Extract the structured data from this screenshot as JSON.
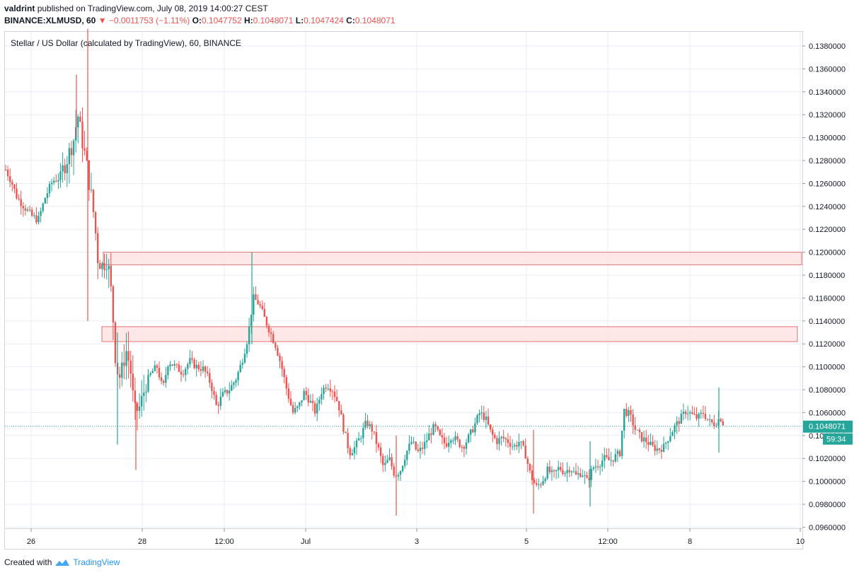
{
  "header": {
    "user": "valdrint",
    "published_text": "published on TradingView.com, July 08, 2019 14:00:27 CEST",
    "symbol": "BINANCE:XLMUSD, 60",
    "change": "▼ −0.0011753 (−1.11%)",
    "o_label": "O:",
    "o_value": "0.1047752",
    "h_label": "H:",
    "h_value": "0.1048071",
    "l_label": "L:",
    "l_value": "0.1047424",
    "c_label": "C:",
    "c_value": "0.1048071"
  },
  "footer": {
    "created_with": "Created with",
    "brand": "TradingView"
  },
  "colors": {
    "up": "#26a69a",
    "down": "#ef5350",
    "zone_fill": "#fde3e3",
    "zone_stroke": "#e57373",
    "price_line": "#26a69a",
    "grid": "#e9eef3",
    "axis": "#9598a1"
  },
  "chart_data": {
    "type": "candlestick",
    "title": "Stellar / US Dollar (calculated by TradingView), 60, BINANCE",
    "ylim": [
      0.0945,
      0.1395
    ],
    "y_ticks": [
      "0.1380000",
      "0.1360000",
      "0.1340000",
      "0.1320000",
      "0.1300000",
      "0.1280000",
      "0.1260000",
      "0.1240000",
      "0.1220000",
      "0.1200000",
      "0.1180000",
      "0.1160000",
      "0.1140000",
      "0.1120000",
      "0.1100000",
      "0.1080000",
      "0.1060000",
      "0.1040000",
      "0.1020000",
      "0.1000000",
      "0.0980000",
      "0.0960000"
    ],
    "x_ticks": [
      "26",
      "28",
      "12:00",
      "Jul",
      "3",
      "5",
      "12:00",
      "8",
      "10"
    ],
    "last_price": "0.1048071",
    "countdown": "59:34",
    "last_price_value": 0.1048071,
    "resistance_zones": [
      {
        "label": "zone-upper",
        "low": 0.1189,
        "high": 0.12
      },
      {
        "label": "zone-lower",
        "low": 0.1122,
        "high": 0.1135
      }
    ],
    "price_path": [
      [
        0,
        0.1272
      ],
      [
        8,
        0.1262
      ],
      [
        16,
        0.1248
      ],
      [
        26,
        0.124
      ],
      [
        36,
        0.1232
      ],
      [
        46,
        0.1228
      ],
      [
        56,
        0.1248
      ],
      [
        66,
        0.1262
      ],
      [
        76,
        0.1265
      ],
      [
        86,
        0.128
      ],
      [
        96,
        0.1298
      ],
      [
        102,
        0.132
      ],
      [
        108,
        0.1298
      ],
      [
        114,
        0.1278
      ],
      [
        118,
        0.126
      ],
      [
        122,
        0.1245
      ],
      [
        126,
        0.1225
      ],
      [
        130,
        0.1195
      ],
      [
        136,
        0.1188
      ],
      [
        144,
        0.1194
      ],
      [
        150,
        0.116
      ],
      [
        156,
        0.11
      ],
      [
        162,
        0.109
      ],
      [
        170,
        0.1115
      ],
      [
        176,
        0.11
      ],
      [
        182,
        0.106
      ],
      [
        190,
        0.1065
      ],
      [
        198,
        0.1085
      ],
      [
        206,
        0.1095
      ],
      [
        214,
        0.11
      ],
      [
        222,
        0.108
      ],
      [
        230,
        0.1105
      ],
      [
        240,
        0.11
      ],
      [
        250,
        0.1095
      ],
      [
        260,
        0.1105
      ],
      [
        270,
        0.11
      ],
      [
        280,
        0.1098
      ],
      [
        290,
        0.1085
      ],
      [
        298,
        0.1065
      ],
      [
        306,
        0.1075
      ],
      [
        316,
        0.108
      ],
      [
        326,
        0.109
      ],
      [
        334,
        0.1105
      ],
      [
        342,
        0.1125
      ],
      [
        350,
        0.116
      ],
      [
        358,
        0.1155
      ],
      [
        366,
        0.1142
      ],
      [
        374,
        0.113
      ],
      [
        382,
        0.1118
      ],
      [
        390,
        0.11
      ],
      [
        398,
        0.1078
      ],
      [
        406,
        0.106
      ],
      [
        414,
        0.1065
      ],
      [
        422,
        0.1078
      ],
      [
        430,
        0.107
      ],
      [
        438,
        0.106
      ],
      [
        446,
        0.1078
      ],
      [
        454,
        0.1085
      ],
      [
        462,
        0.108
      ],
      [
        470,
        0.1068
      ],
      [
        478,
        0.1045
      ],
      [
        486,
        0.1025
      ],
      [
        494,
        0.103
      ],
      [
        502,
        0.104
      ],
      [
        510,
        0.1052
      ],
      [
        518,
        0.1045
      ],
      [
        526,
        0.103
      ],
      [
        534,
        0.1012
      ],
      [
        542,
        0.102
      ],
      [
        550,
        0.1005
      ],
      [
        558,
        0.101
      ],
      [
        566,
        0.1025
      ],
      [
        574,
        0.1035
      ],
      [
        582,
        0.1025
      ],
      [
        590,
        0.103
      ],
      [
        598,
        0.104
      ],
      [
        606,
        0.1048
      ],
      [
        614,
        0.1038
      ],
      [
        622,
        0.1032
      ],
      [
        630,
        0.104
      ],
      [
        638,
        0.1035
      ],
      [
        646,
        0.103
      ],
      [
        654,
        0.1038
      ],
      [
        662,
        0.1048
      ],
      [
        670,
        0.106
      ],
      [
        678,
        0.1055
      ],
      [
        686,
        0.1042
      ],
      [
        694,
        0.1035
      ],
      [
        702,
        0.1038
      ],
      [
        710,
        0.1035
      ],
      [
        718,
        0.103
      ],
      [
        726,
        0.1035
      ],
      [
        734,
        0.1025
      ],
      [
        742,
        0.1005
      ],
      [
        750,
        0.0995
      ],
      [
        758,
        0.1
      ],
      [
        766,
        0.101
      ],
      [
        774,
        0.1005
      ],
      [
        782,
        0.1012
      ],
      [
        790,
        0.1008
      ],
      [
        798,
        0.1012
      ],
      [
        806,
        0.1005
      ],
      [
        814,
        0.1008
      ],
      [
        822,
        0.1
      ],
      [
        830,
        0.1012
      ],
      [
        838,
        0.1015
      ],
      [
        846,
        0.102
      ],
      [
        854,
        0.1018
      ],
      [
        862,
        0.1022
      ],
      [
        868,
        0.1025
      ],
      [
        874,
        0.1062
      ],
      [
        882,
        0.1058
      ],
      [
        890,
        0.1045
      ],
      [
        898,
        0.1038
      ],
      [
        906,
        0.1035
      ],
      [
        914,
        0.103
      ],
      [
        922,
        0.1028
      ],
      [
        930,
        0.103
      ],
      [
        938,
        0.104
      ],
      [
        946,
        0.1048
      ],
      [
        954,
        0.1055
      ],
      [
        962,
        0.1062
      ],
      [
        970,
        0.1058
      ],
      [
        978,
        0.1055
      ],
      [
        986,
        0.106
      ],
      [
        994,
        0.1052
      ],
      [
        1002,
        0.105
      ],
      [
        1010,
        0.1056
      ],
      [
        1016,
        0.1048
      ]
    ],
    "wick_spikes": [
      [
        116,
        0.1395,
        0.114
      ],
      [
        100,
        0.1355,
        0.13
      ],
      [
        158,
        0.113,
        0.1032
      ],
      [
        184,
        0.107,
        0.101
      ],
      [
        348,
        0.12,
        0.112
      ],
      [
        552,
        0.104,
        0.097
      ],
      [
        746,
        0.1045,
        0.0972
      ],
      [
        826,
        0.1035,
        0.0978
      ],
      [
        1008,
        0.1082,
        0.1025
      ]
    ]
  }
}
